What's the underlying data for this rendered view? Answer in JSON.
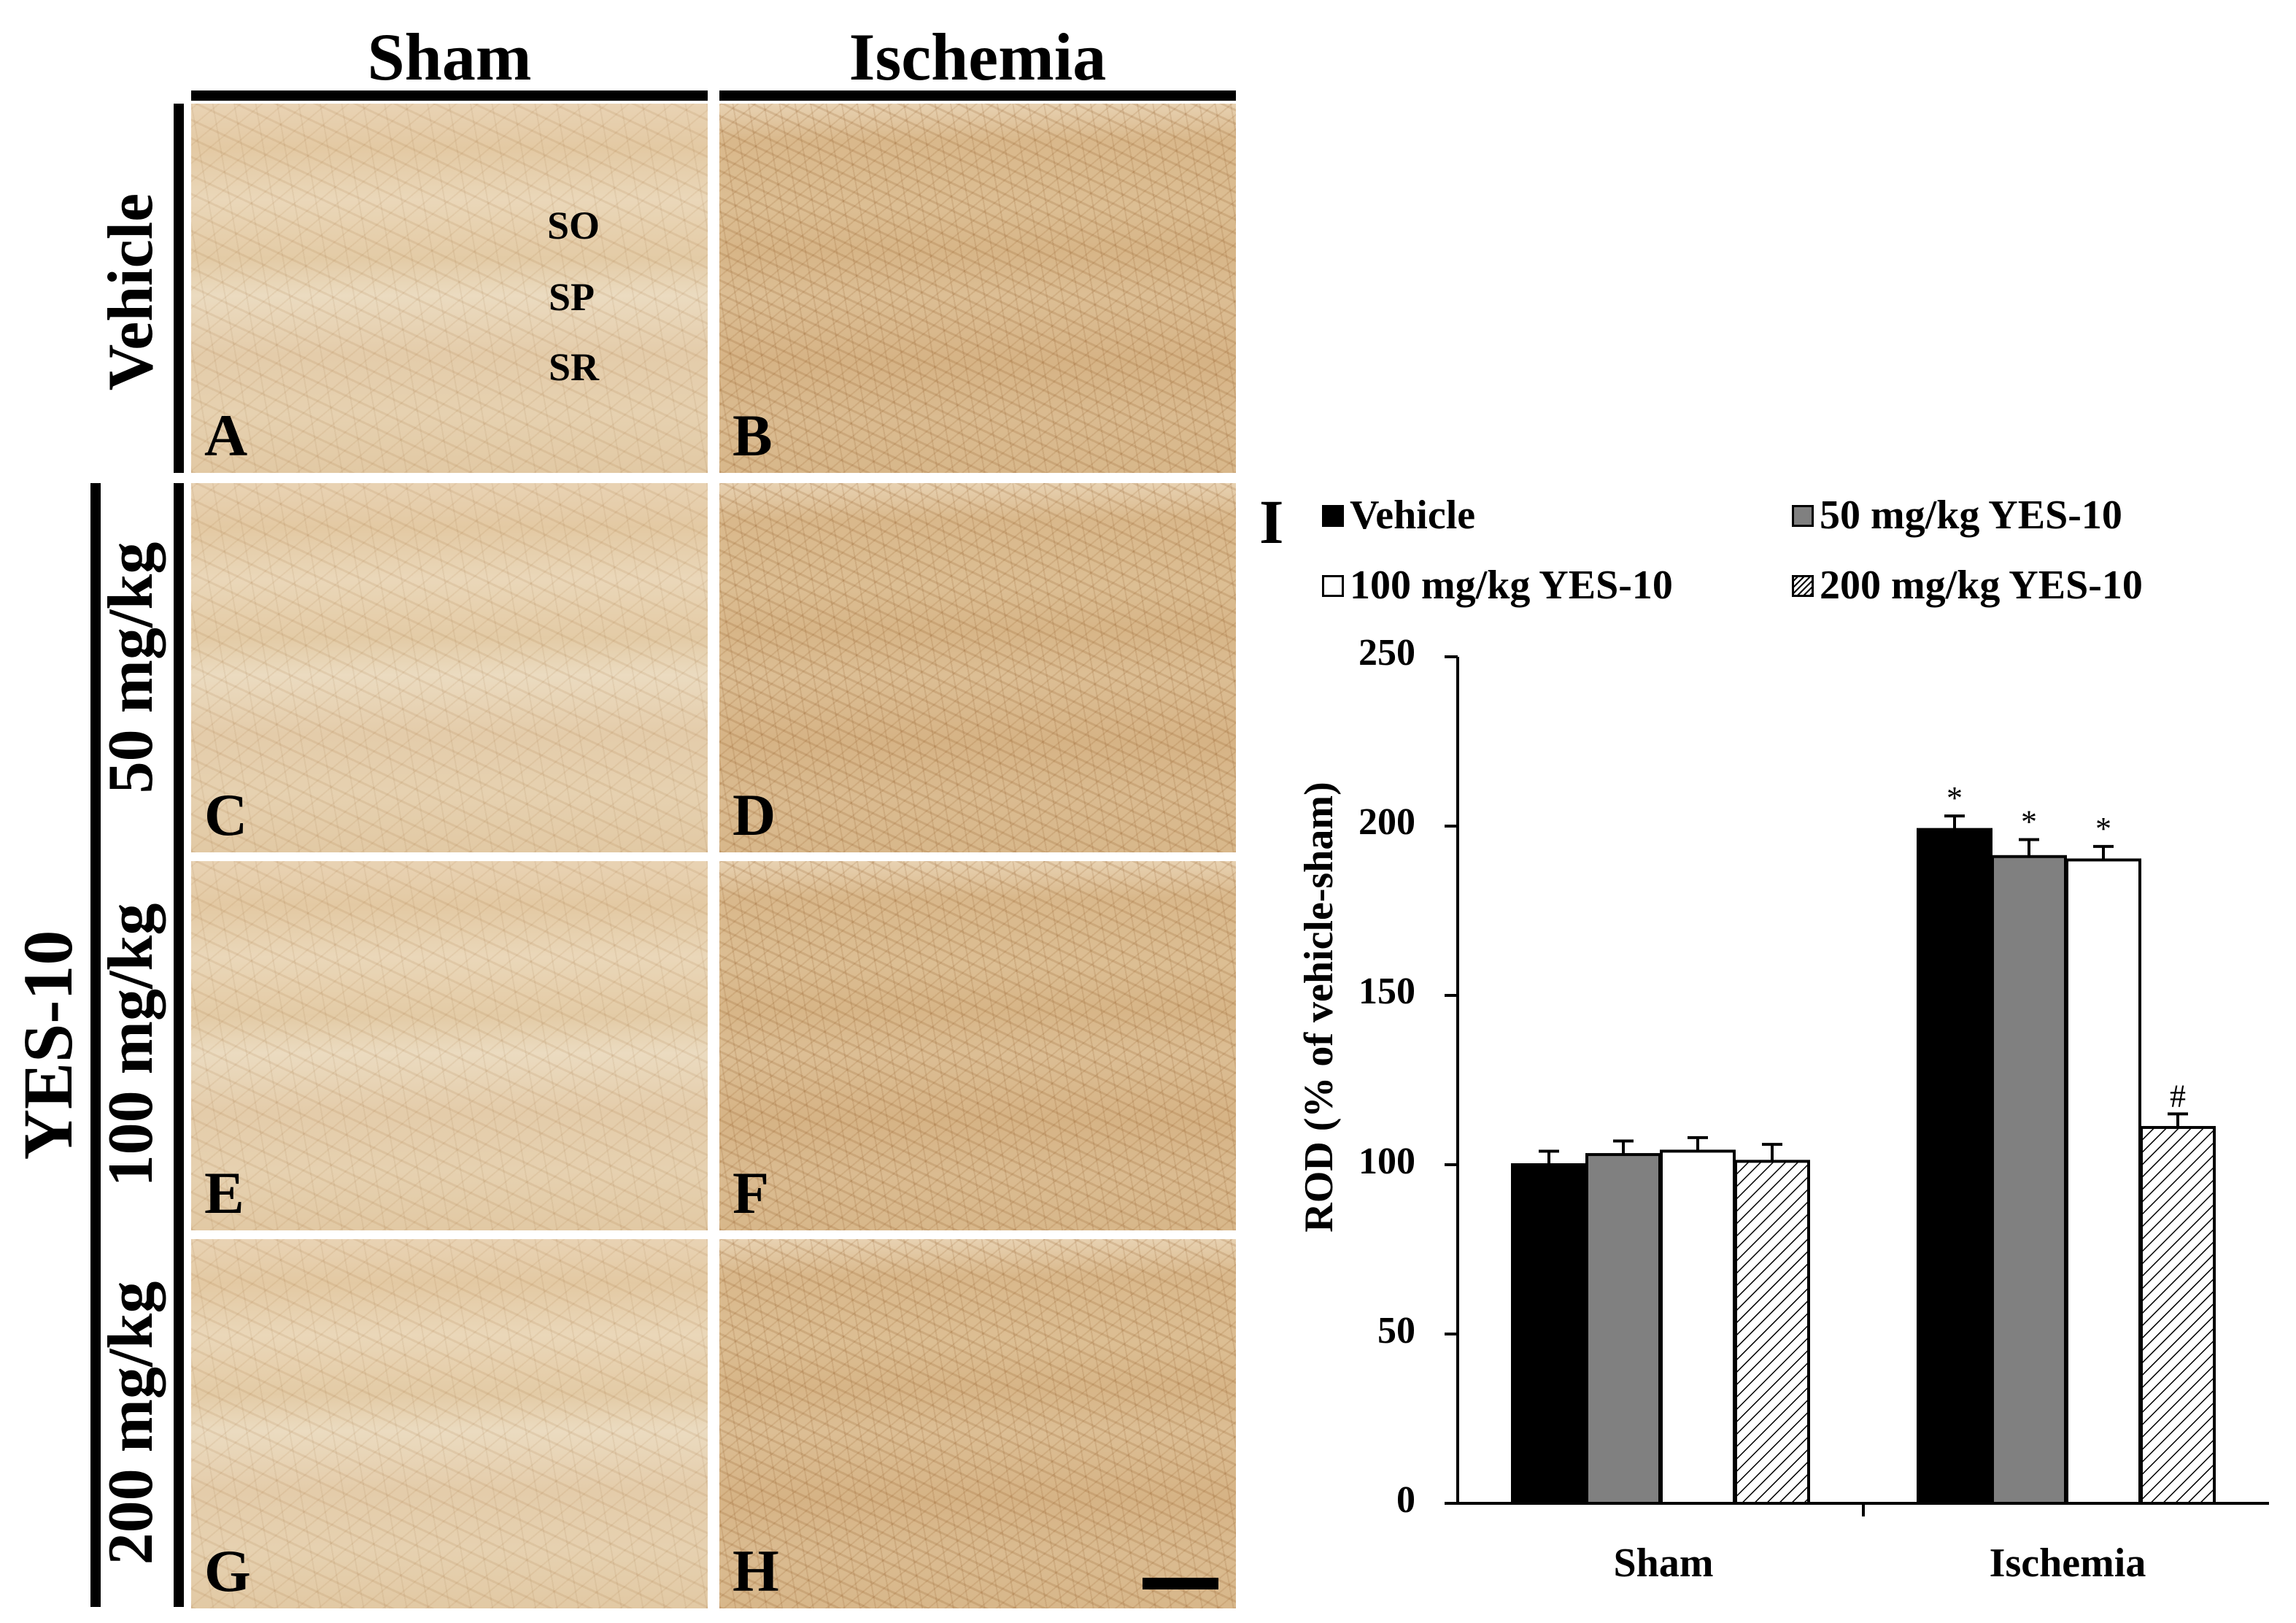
{
  "columns": [
    "Sham",
    "Ischemia"
  ],
  "rows": [
    "Vehicle",
    "50 mg/kg",
    "100 mg/kg",
    "200 mg/kg"
  ],
  "group_label": "YES-10",
  "layer_labels": [
    "SO",
    "SP",
    "SR"
  ],
  "panel_letters": [
    "A",
    "B",
    "C",
    "D",
    "E",
    "F",
    "G",
    "H"
  ],
  "chart_panel_letter": "I",
  "colors": {
    "vehicle": "#000000",
    "dose50": "#808080",
    "dose100": "#ffffff",
    "dose200": "hatched",
    "tissue_light": "#e6cfac",
    "tissue_dense": "#d8b78a"
  },
  "chart_data": {
    "type": "bar",
    "categories": [
      "Sham",
      "Ischemia"
    ],
    "series": [
      {
        "name": "Vehicle",
        "values": [
          100,
          199
        ],
        "errors": [
          4,
          4
        ],
        "marks": [
          "",
          "*"
        ]
      },
      {
        "name": "50 mg/kg YES-10",
        "values": [
          103,
          191
        ],
        "errors": [
          4,
          5
        ],
        "marks": [
          "",
          "*"
        ]
      },
      {
        "name": "100 mg/kg YES-10",
        "values": [
          104,
          190
        ],
        "errors": [
          4,
          4
        ],
        "marks": [
          "",
          "*"
        ]
      },
      {
        "name": "200 mg/kg YES-10",
        "values": [
          101,
          111
        ],
        "errors": [
          5,
          4
        ],
        "marks": [
          "",
          "#"
        ]
      }
    ],
    "ylabel": "ROD (% of vehicle-sham)",
    "xlabel": "",
    "ylim": [
      0,
      250
    ],
    "yticks": [
      "0",
      "50",
      "100",
      "150",
      "200",
      "250"
    ],
    "grid": false,
    "legend": "top"
  }
}
